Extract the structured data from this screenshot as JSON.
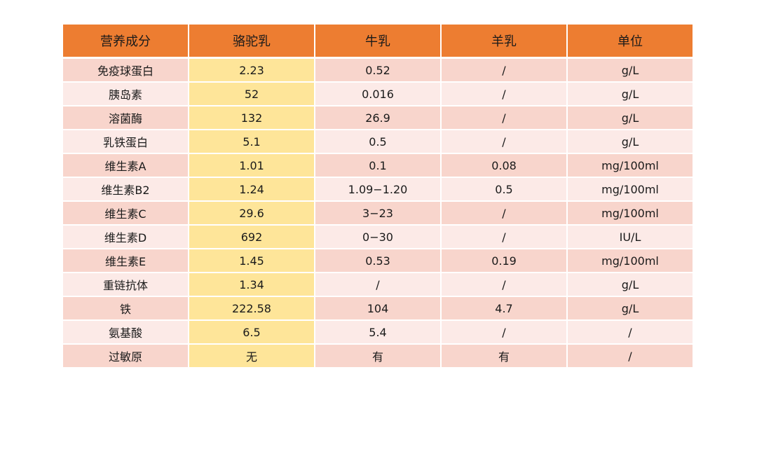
{
  "headers": [
    "营养成分",
    "骆驼乳",
    "牛乳",
    "羊乳",
    "单位"
  ],
  "rows": [
    [
      "免疫球蛋白",
      "2.23",
      "0.52",
      "/",
      "g/L"
    ],
    [
      "胰岛素",
      "52",
      "0.016",
      "/",
      "g/L"
    ],
    [
      "溶菌酶",
      "132",
      "26.9",
      "/",
      "g/L"
    ],
    [
      "乳铁蛋白",
      "5.1",
      "0.5",
      "/",
      "g/L"
    ],
    [
      "维生素A",
      "1.01",
      "0.1",
      "0.08",
      "mg/100ml"
    ],
    [
      "维生素B2",
      "1.24",
      "1.09−1.20",
      "0.5",
      "mg/100ml"
    ],
    [
      "维生素C",
      "29.6",
      "3−23",
      "/",
      "mg/100ml"
    ],
    [
      "维生素D",
      "692",
      "0−30",
      "/",
      "IU/L"
    ],
    [
      "维生素E",
      "1.45",
      "0.53",
      "0.19",
      "mg/100ml"
    ],
    [
      "重链抗体",
      "1.34",
      "/",
      "/",
      "g/L"
    ],
    [
      "铁",
      "222.58",
      "104",
      "4.7",
      "g/L"
    ],
    [
      "氨基酸",
      "6.5",
      "5.4",
      "/",
      "/"
    ],
    [
      "过敏原",
      "无",
      "有",
      "有",
      "/"
    ]
  ],
  "colors": {
    "header": "#ED7D31",
    "row_odd": "#F8D5CC",
    "row_even": "#FCEAE7",
    "highlight_column": "#FEE599"
  }
}
